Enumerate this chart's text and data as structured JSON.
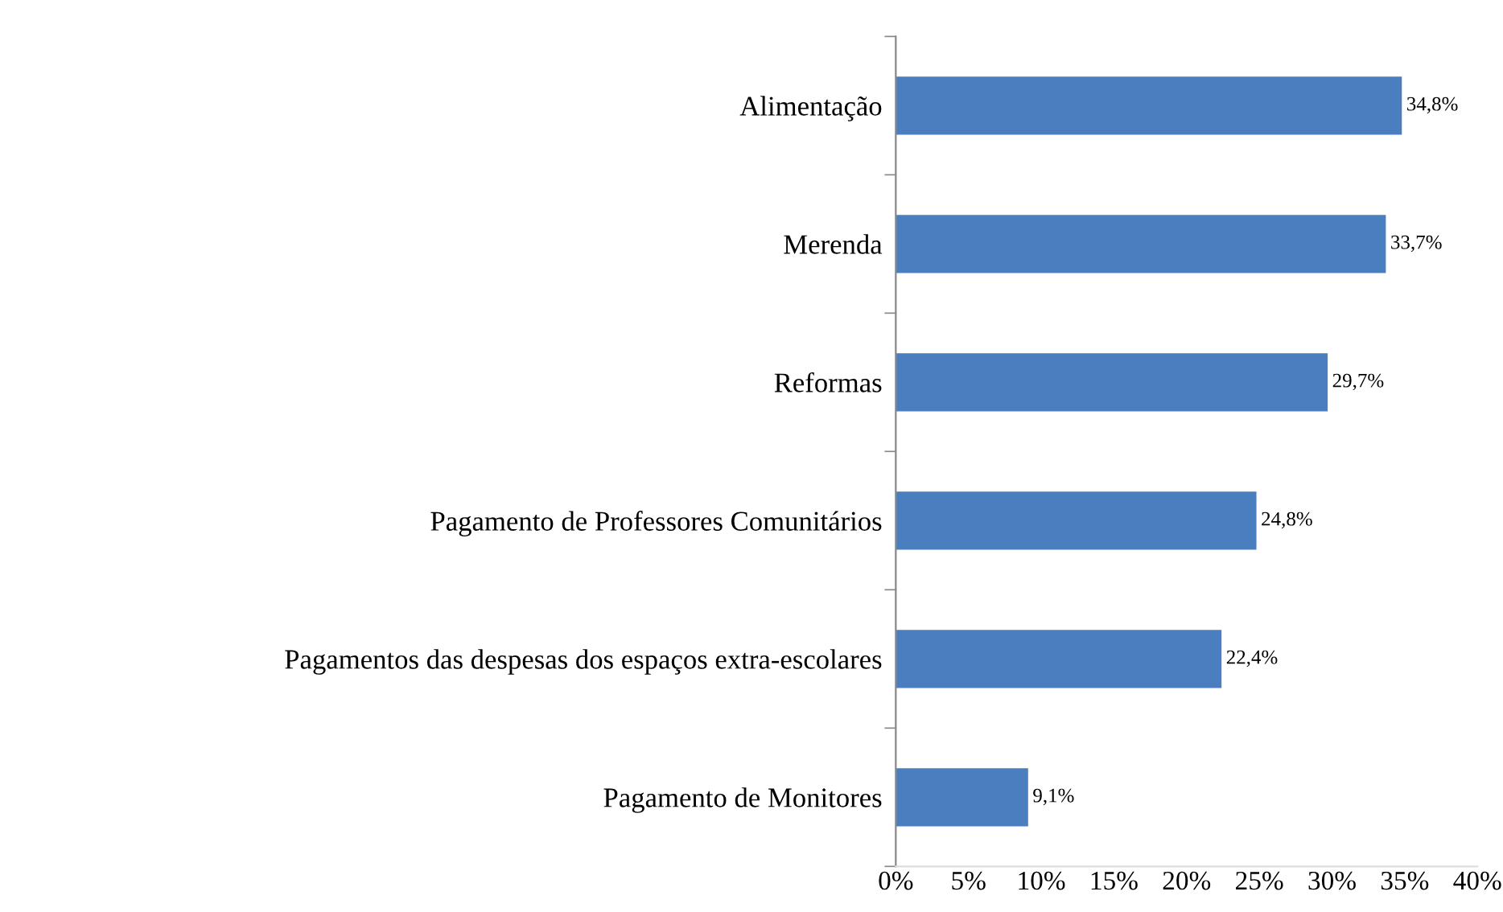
{
  "chart_data": {
    "type": "bar",
    "orientation": "horizontal",
    "categories": [
      "Alimentação",
      "Merenda",
      "Reformas",
      "Pagamento de Professores Comunitários",
      "Pagamentos das despesas dos espaços extra-escolares",
      "Pagamento de Monitores"
    ],
    "values": [
      34.8,
      33.7,
      29.7,
      24.8,
      22.4,
      9.1
    ],
    "value_labels": [
      "34,8%",
      "33,7%",
      "29,7%",
      "24,8%",
      "22,4%",
      "9,1%"
    ],
    "color": "#4a7ebf",
    "xlim": [
      0,
      40
    ],
    "xticks": [
      {
        "value": 0,
        "label": "0%"
      },
      {
        "value": 5,
        "label": "5%"
      },
      {
        "value": 10,
        "label": "10%"
      },
      {
        "value": 15,
        "label": "15%"
      },
      {
        "value": 20,
        "label": "20%"
      },
      {
        "value": 25,
        "label": "25%"
      },
      {
        "value": 30,
        "label": "30%"
      },
      {
        "value": 35,
        "label": "35%"
      },
      {
        "value": 40,
        "label": "40%"
      }
    ],
    "grid": false,
    "legend": false
  }
}
